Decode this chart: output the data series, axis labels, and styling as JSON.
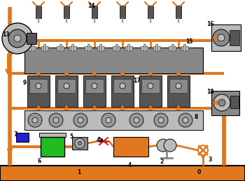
{
  "bg_color": "#ffffff",
  "oil_color": "#E07820",
  "green_color": "#22BB22",
  "blue_color": "#2222CC",
  "red_color": "#CC2222",
  "engine_gray": "#888888",
  "dark_gray": "#555555",
  "light_gray": "#BBBBBB",
  "crank_color": "#999999",
  "black": "#000000",
  "white": "#ffffff"
}
